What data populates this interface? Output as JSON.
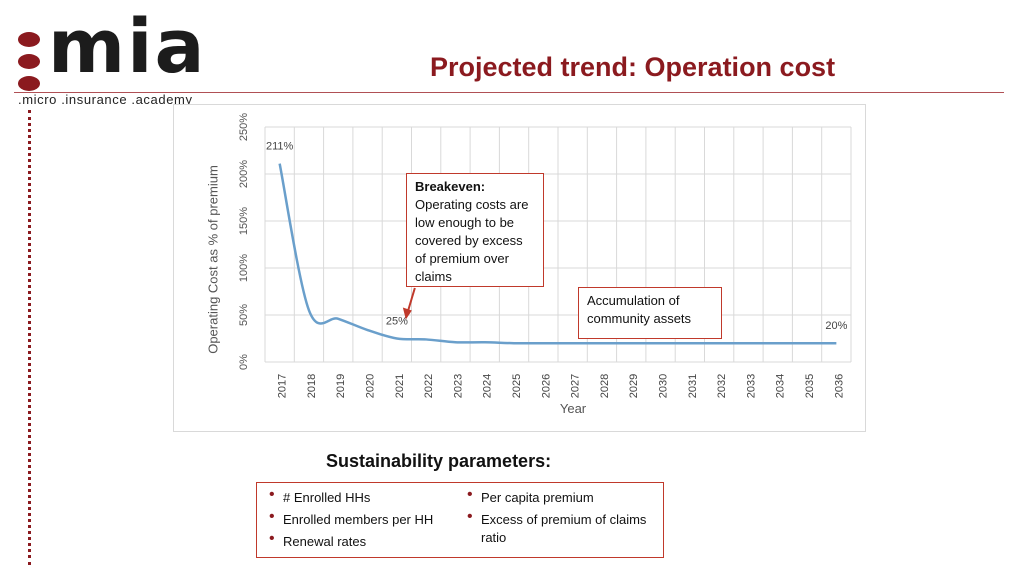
{
  "logo": {
    "word": "mia",
    "tagline": ".micro .insurance .academy",
    "color": "#8b1a1f"
  },
  "title": "Projected trend: Operation cost",
  "chart_data": {
    "type": "line",
    "xlabel": "Year",
    "ylabel": "Operating Cost as % of premium",
    "ylim": [
      0,
      250
    ],
    "y_ticks": [
      "0%",
      "50%",
      "100%",
      "150%",
      "200%",
      "250%"
    ],
    "categories": [
      "2017",
      "2018",
      "2019",
      "2020",
      "2021",
      "2022",
      "2023",
      "2024",
      "2025",
      "2026",
      "2027",
      "2028",
      "2029",
      "2030",
      "2031",
      "2032",
      "2033",
      "2034",
      "2035",
      "2036"
    ],
    "series": [
      {
        "values": [
          211,
          55,
          46,
          34,
          25,
          24,
          21,
          21,
          20,
          20,
          20,
          20,
          20,
          20,
          20,
          20,
          20,
          20,
          20,
          20
        ],
        "color": "#6a9fcb"
      }
    ],
    "data_labels": [
      {
        "index": 0,
        "text": "211%"
      },
      {
        "index": 4,
        "text": "25%"
      },
      {
        "index": 19,
        "text": "20%"
      }
    ],
    "grid": true
  },
  "callouts": {
    "breakeven_head": "Breakeven:",
    "breakeven_body": "Operating costs are low enough to be covered by excess of premium over claims",
    "assets": "Accumulation of community assets"
  },
  "parameters": {
    "title": "Sustainability parameters:",
    "left": [
      "# Enrolled HHs",
      "Enrolled members per HH",
      "Renewal rates"
    ],
    "right": [
      "Per capita premium",
      "Excess of premium of claims ratio"
    ]
  }
}
